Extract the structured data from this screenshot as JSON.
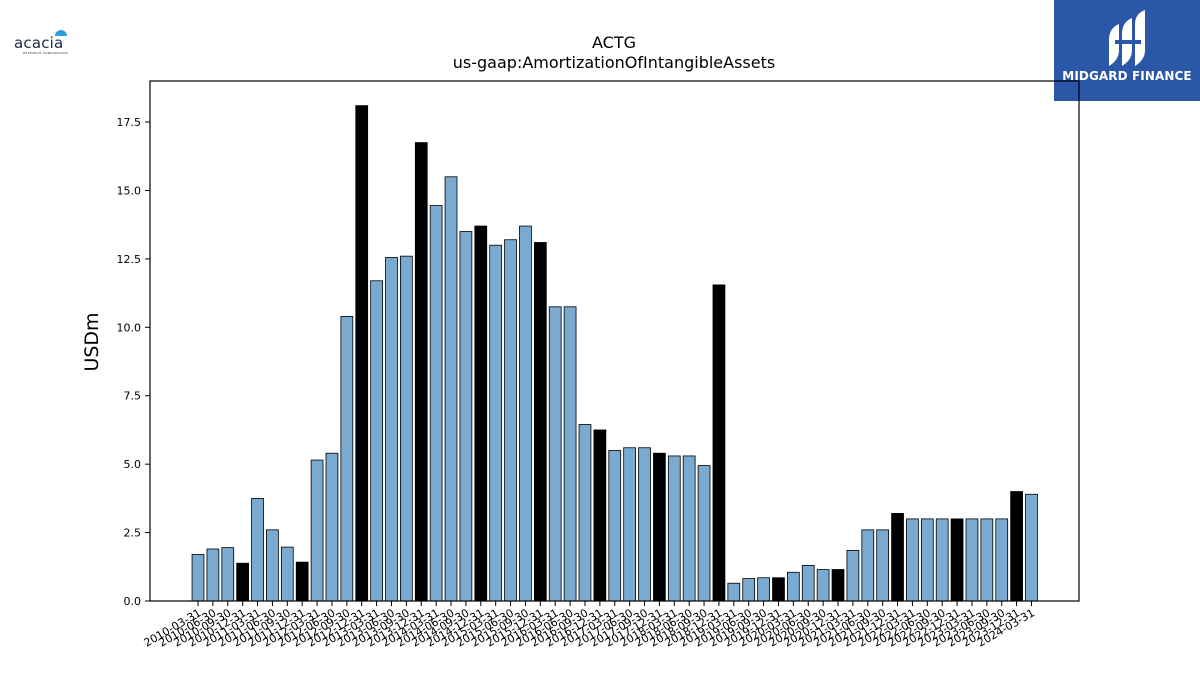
{
  "logos": {
    "left": {
      "wordmark": "acacia",
      "tagline": "RESEARCH CORPORATION"
    },
    "right": {
      "brand": "MIDGARD FINANCE",
      "background": "#2b57a8"
    }
  },
  "colors": {
    "bar": "#7aaad0",
    "highlight": "#000000",
    "edge": "#000000"
  },
  "chart_data": {
    "type": "bar",
    "title": "ACTG",
    "subtitle": "us-gaap:AmortizationOfIntangibleAssets",
    "xlabel": "",
    "ylabel": "USDm",
    "ylim": [
      0,
      19
    ],
    "yticks": [
      0.0,
      2.5,
      5.0,
      7.5,
      10.0,
      12.5,
      15.0,
      17.5
    ],
    "ytick_labels": [
      "0.0",
      "2.5",
      "5.0",
      "7.5",
      "10.0",
      "12.5",
      "15.0",
      "17.5"
    ],
    "grid": false,
    "legend": "none",
    "categories": [
      "2010-03-31",
      "2010-06-30",
      "2010-09-30",
      "2010-12-31",
      "2011-03-31",
      "2011-06-30",
      "2011-09-30",
      "2011-12-31",
      "2012-03-31",
      "2012-06-30",
      "2012-09-30",
      "2012-12-31",
      "2013-03-31",
      "2013-06-30",
      "2013-09-30",
      "2013-12-31",
      "2014-03-31",
      "2014-06-30",
      "2014-09-30",
      "2014-12-31",
      "2015-03-31",
      "2015-06-30",
      "2015-09-30",
      "2015-12-31",
      "2016-03-31",
      "2016-06-30",
      "2016-09-30",
      "2016-12-31",
      "2017-03-31",
      "2017-06-30",
      "2017-09-30",
      "2017-12-31",
      "2018-03-31",
      "2018-06-30",
      "2018-09-30",
      "2018-12-31",
      "2019-03-31",
      "2019-06-30",
      "2019-09-30",
      "2019-12-31",
      "2020-03-31",
      "2020-06-30",
      "2020-09-30",
      "2020-12-31",
      "2021-03-31",
      "2021-06-30",
      "2021-09-30",
      "2021-12-31",
      "2022-03-31",
      "2022-06-30",
      "2022-09-30",
      "2022-12-31",
      "2023-03-31",
      "2023-06-30",
      "2023-09-30",
      "2023-12-31",
      "2024-03-31"
    ],
    "values": [
      1.7,
      1.9,
      1.95,
      1.38,
      3.75,
      2.6,
      1.97,
      1.42,
      5.15,
      5.4,
      10.4,
      18.1,
      11.7,
      12.55,
      12.6,
      16.75,
      14.45,
      15.5,
      13.5,
      13.7,
      13.0,
      13.2,
      13.7,
      13.1,
      10.75,
      10.75,
      6.45,
      6.25,
      5.5,
      5.6,
      5.6,
      5.4,
      5.3,
      5.3,
      4.95,
      11.55,
      0.65,
      0.82,
      0.85,
      0.85,
      1.05,
      1.3,
      1.15,
      1.15,
      1.85,
      2.6,
      2.6,
      3.2,
      3.0,
      3.0,
      3.0,
      3.0,
      3.0,
      3.0,
      3.0,
      4.0,
      3.9
    ],
    "highlighted": [
      false,
      false,
      false,
      true,
      false,
      false,
      false,
      true,
      false,
      false,
      false,
      true,
      false,
      false,
      false,
      true,
      false,
      false,
      false,
      true,
      false,
      false,
      false,
      true,
      false,
      false,
      false,
      true,
      false,
      false,
      false,
      true,
      false,
      false,
      false,
      true,
      false,
      false,
      false,
      true,
      false,
      false,
      false,
      true,
      false,
      false,
      false,
      true,
      false,
      false,
      false,
      true,
      false,
      false,
      false,
      true,
      false
    ]
  }
}
